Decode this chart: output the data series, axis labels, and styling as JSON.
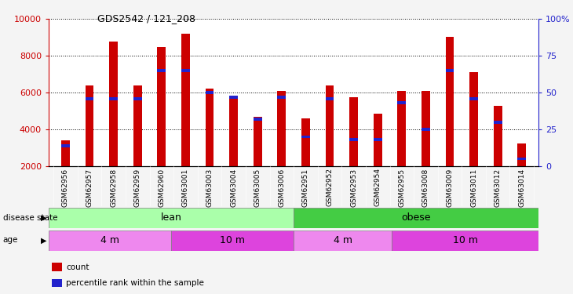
{
  "title": "GDS2542 / 121_208",
  "samples": [
    "GSM62956",
    "GSM62957",
    "GSM62958",
    "GSM62959",
    "GSM62960",
    "GSM63001",
    "GSM63003",
    "GSM63004",
    "GSM63005",
    "GSM63006",
    "GSM62951",
    "GSM62952",
    "GSM62953",
    "GSM62954",
    "GSM62955",
    "GSM63008",
    "GSM63009",
    "GSM63011",
    "GSM63012",
    "GSM63014"
  ],
  "counts": [
    3400,
    6400,
    8800,
    6400,
    8500,
    9200,
    6200,
    5850,
    4700,
    6100,
    4600,
    6400,
    5750,
    4850,
    6100,
    6100,
    9050,
    7100,
    5300,
    3250
  ],
  "percentile_ranks": [
    14,
    46,
    46,
    46,
    65,
    65,
    50,
    47,
    32,
    47,
    20,
    46,
    18,
    18,
    43,
    25,
    65,
    46,
    30,
    5
  ],
  "bar_color": "#cc0000",
  "marker_color": "#2222cc",
  "plot_background": "#ffffff",
  "left_axis_color": "#cc0000",
  "right_axis_color": "#2222cc",
  "ylim_left": [
    2000,
    10000
  ],
  "ylim_right": [
    0,
    100
  ],
  "yticks_left": [
    2000,
    4000,
    6000,
    8000,
    10000
  ],
  "yticks_right": [
    0,
    25,
    50,
    75,
    100
  ],
  "disease_state_groups": [
    {
      "label": "lean",
      "start": 0,
      "end": 10,
      "color": "#aaffaa"
    },
    {
      "label": "obese",
      "start": 10,
      "end": 20,
      "color": "#44cc44"
    }
  ],
  "age_groups": [
    {
      "label": "4 m",
      "start": 0,
      "end": 5,
      "color": "#ee88ee"
    },
    {
      "label": "10 m",
      "start": 5,
      "end": 10,
      "color": "#dd44dd"
    },
    {
      "label": "4 m",
      "start": 10,
      "end": 14,
      "color": "#ee88ee"
    },
    {
      "label": "10 m",
      "start": 14,
      "end": 20,
      "color": "#dd44dd"
    }
  ],
  "legend_items": [
    {
      "label": "count",
      "color": "#cc0000"
    },
    {
      "label": "percentile rank within the sample",
      "color": "#2222cc"
    }
  ]
}
